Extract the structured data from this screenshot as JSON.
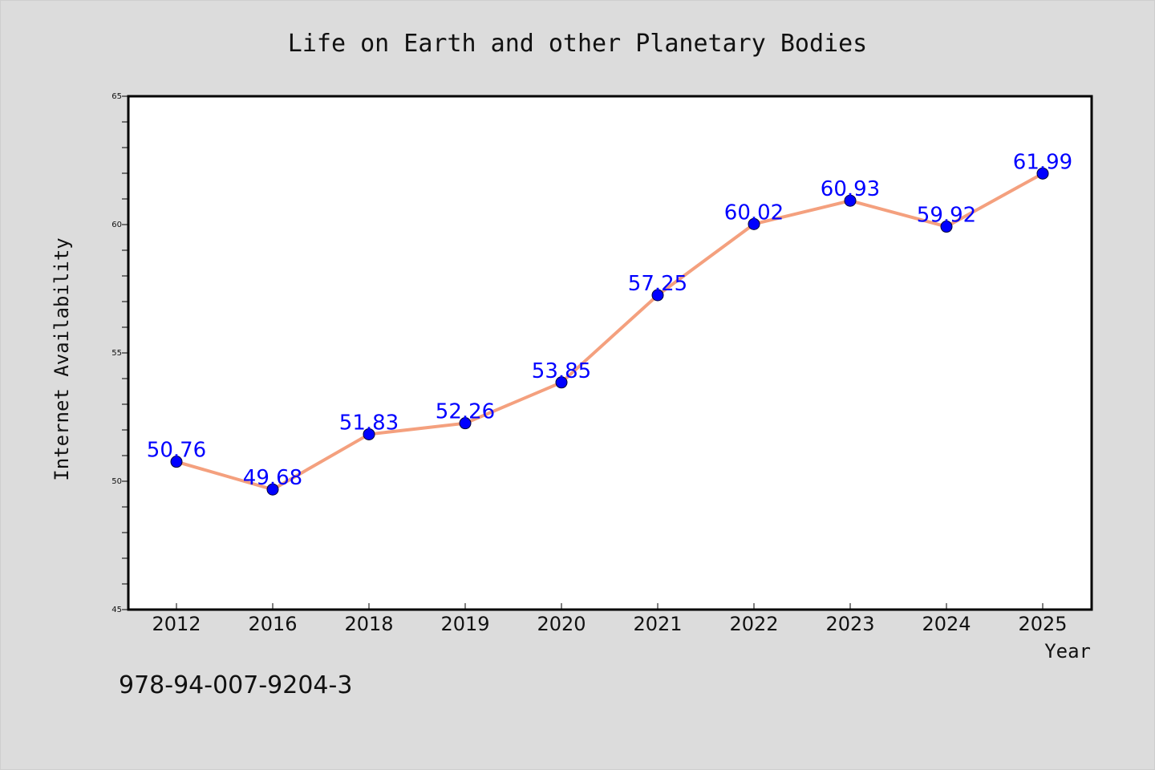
{
  "chart_data": {
    "type": "line",
    "title": "Life on Earth and other Planetary Bodies",
    "xlabel": "Year",
    "ylabel": "Internet Availability",
    "categories": [
      "2012",
      "2016",
      "2018",
      "2019",
      "2020",
      "2021",
      "2022",
      "2023",
      "2024",
      "2025"
    ],
    "series": [
      {
        "values": [
          50.76,
          49.68,
          51.83,
          52.26,
          53.85,
          57.25,
          60.02,
          60.93,
          59.92,
          61.99
        ],
        "labels": [
          "50.76",
          "49.68",
          "51.83",
          "52.26",
          "53.85",
          "57.25",
          "60.02",
          "60.93",
          "59.92",
          "61.99"
        ]
      }
    ],
    "ylim": [
      45,
      65
    ],
    "yticks": [
      "45",
      "50",
      "55",
      "60",
      "65"
    ],
    "grid": false,
    "legend": "none",
    "colors": {
      "line": "#f4a07e",
      "marker": "#0000ff",
      "label": "#0000ff",
      "background": "#dcdcdc",
      "plot_background": "#ffffff"
    }
  },
  "footer_text": "978-94-007-9204-3"
}
